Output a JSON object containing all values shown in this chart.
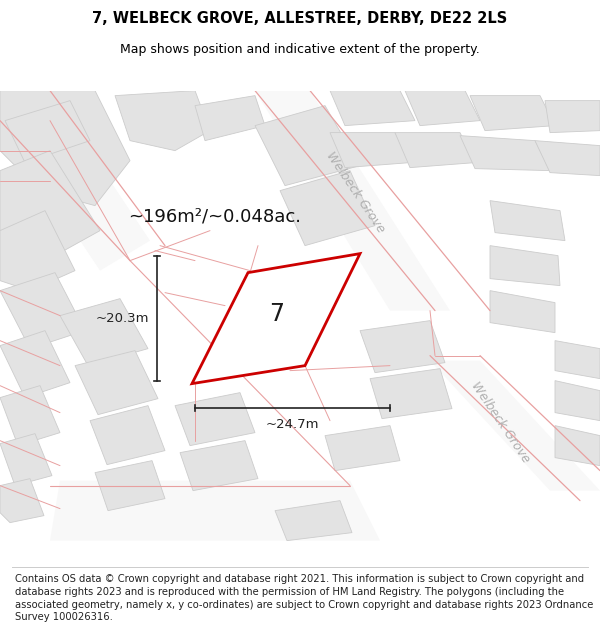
{
  "title": "7, WELBECK GROVE, ALLESTREE, DERBY, DE22 2LS",
  "subtitle": "Map shows position and indicative extent of the property.",
  "footer": "Contains OS data © Crown copyright and database right 2021. This information is subject to Crown copyright and database rights 2023 and is reproduced with the permission of HM Land Registry. The polygons (including the associated geometry, namely x, y co-ordinates) are subject to Crown copyright and database rights 2023 Ordnance Survey 100026316.",
  "area_text": "~196m²/~0.048ac.",
  "width_label": "~24.7m",
  "height_label": "~20.3m",
  "number_label": "7",
  "map_bg": "#f0f0f0",
  "building_color": "#e3e3e3",
  "building_edge": "#cccccc",
  "plot_fill": "#ffffff",
  "plot_edge": "#cc0000",
  "road_line": "#e8a0a0",
  "road_label_color": "#b0b0b0",
  "dim_color": "#222222",
  "title_fontsize": 10.5,
  "subtitle_fontsize": 9,
  "footer_fontsize": 7.2,
  "area_fontsize": 13,
  "number_fontsize": 17,
  "dim_fontsize": 9.5,
  "road_label_fontsize": 9
}
